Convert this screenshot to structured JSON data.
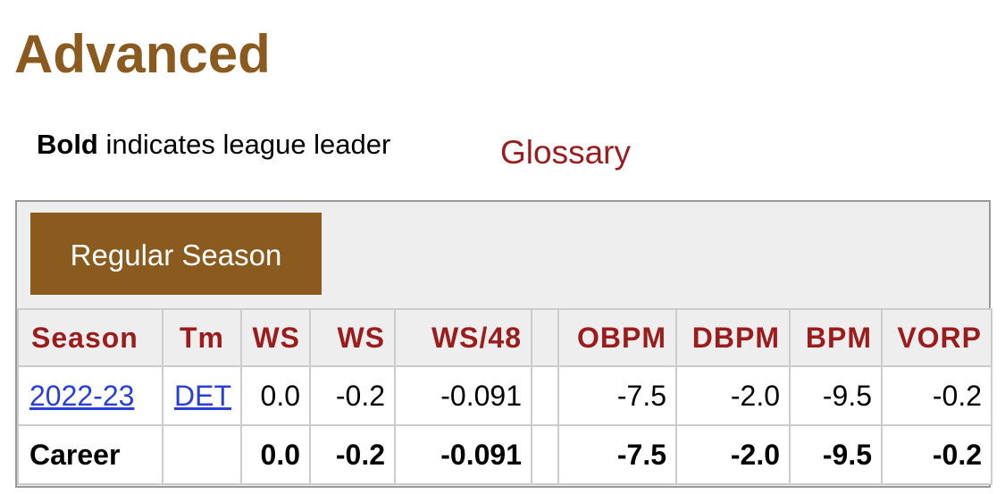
{
  "header": {
    "title": "Advanced"
  },
  "note": {
    "bold": "Bold",
    "text": "indicates league leader"
  },
  "glossary": "Glossary",
  "tab": "Regular Season",
  "table": {
    "columns": [
      "Season",
      "Tm",
      "WS",
      "WS",
      "WS/48",
      "OBPM",
      "DBPM",
      "BPM",
      "VORP"
    ],
    "rows": [
      [
        "2022-23",
        "DET",
        "0.0",
        "-0.2",
        "-0.091",
        "-7.5",
        "-2.0",
        "-9.5",
        "-0.2"
      ]
    ],
    "footer": {
      "label": "Career",
      "values": [
        "0.0",
        "-0.2",
        "-0.091",
        "-7.5",
        "-2.0",
        "-9.5",
        "-0.2"
      ]
    }
  }
}
